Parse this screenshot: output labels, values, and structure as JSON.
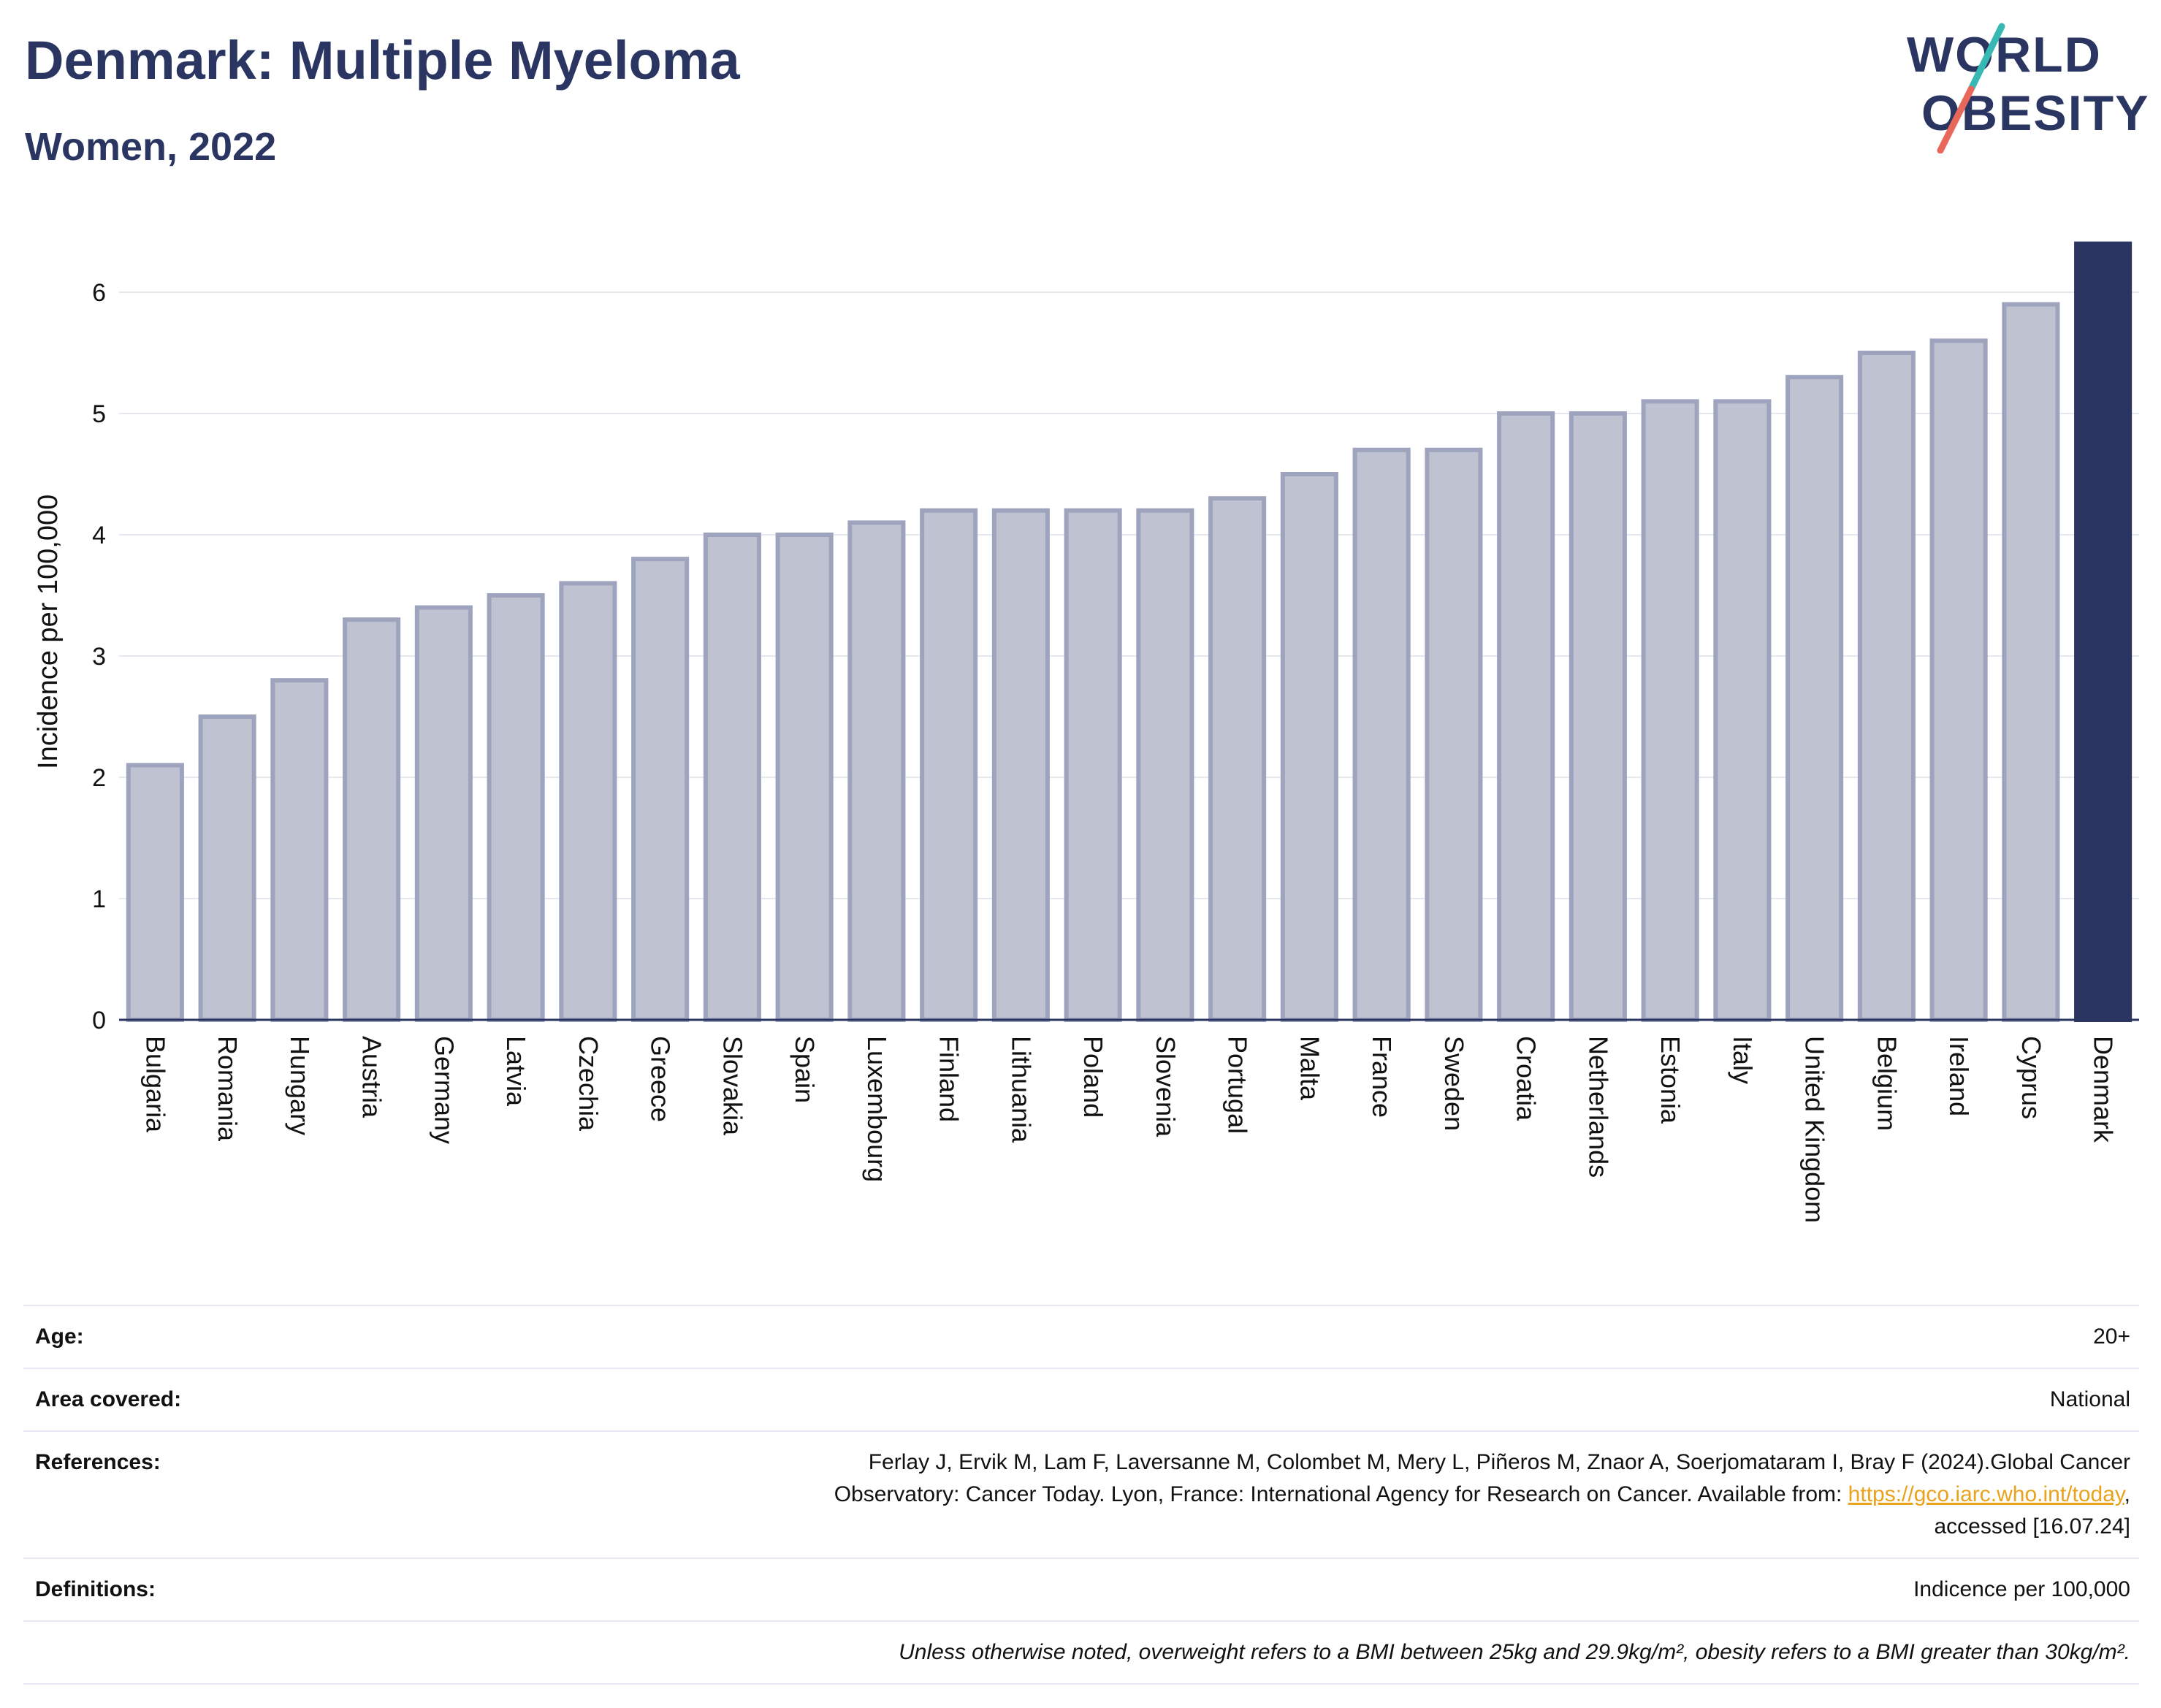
{
  "header": {
    "title": "Denmark: Multiple Myeloma",
    "subtitle": "Women, 2022"
  },
  "logo": {
    "line1": "WORLD",
    "line2": "OBESITY",
    "accent_teal": "#37b8b2",
    "accent_coral": "#e8675a"
  },
  "colors": {
    "bar_default": "#bfc3d1",
    "bar_default_border": "#9ea4bd",
    "bar_highlight": "#2a3561",
    "text_dark": "#2a3561"
  },
  "chart_data": {
    "type": "bar",
    "title": "Denmark: Multiple Myeloma",
    "subtitle": "Women, 2022",
    "ylabel": "Incidence per 100,000",
    "xlabel": "",
    "ylim": [
      0,
      6.45
    ],
    "yticks": [
      0,
      1,
      2,
      3,
      4,
      5,
      6
    ],
    "grid": true,
    "highlight": "Denmark",
    "categories": [
      "Bulgaria",
      "Romania",
      "Hungary",
      "Austria",
      "Germany",
      "Latvia",
      "Czechia",
      "Greece",
      "Slovakia",
      "Spain",
      "Luxembourg",
      "Finland",
      "Lithuania",
      "Poland",
      "Slovenia",
      "Portugal",
      "Malta",
      "France",
      "Sweden",
      "Croatia",
      "Netherlands",
      "Estonia",
      "Italy",
      "United Kingdom",
      "Belgium",
      "Ireland",
      "Cyprus",
      "Denmark"
    ],
    "values": [
      2.1,
      2.5,
      2.8,
      3.3,
      3.4,
      3.5,
      3.6,
      3.8,
      4.0,
      4.0,
      4.1,
      4.2,
      4.2,
      4.2,
      4.2,
      4.3,
      4.5,
      4.7,
      4.7,
      5.0,
      5.0,
      5.1,
      5.1,
      5.3,
      5.5,
      5.6,
      5.9,
      6.4
    ]
  },
  "meta": {
    "age_label": "Age:",
    "age_value": "20+",
    "area_label": "Area covered:",
    "area_value": "National",
    "references_label": "References:",
    "references_line1": "Ferlay J, Ervik M, Lam F, Laversanne M, Colombet M, Mery L, Piñeros M, Znaor A, Soerjomataram I, Bray F (2024).Global Cancer",
    "references_line2": "Observatory: Cancer Today. Lyon, France: International Agency for Research on Cancer. Available from:",
    "references_link": "https://gco.iarc.who.int/today",
    "references_line3": "accessed [16.07.24]",
    "definitions_label": "Definitions:",
    "definitions_value": "Indicence per 100,000",
    "footnote": "Unless otherwise noted, overweight refers to a BMI between 25kg and 29.9kg/m², obesity refers to a BMI greater than 30kg/m²."
  }
}
